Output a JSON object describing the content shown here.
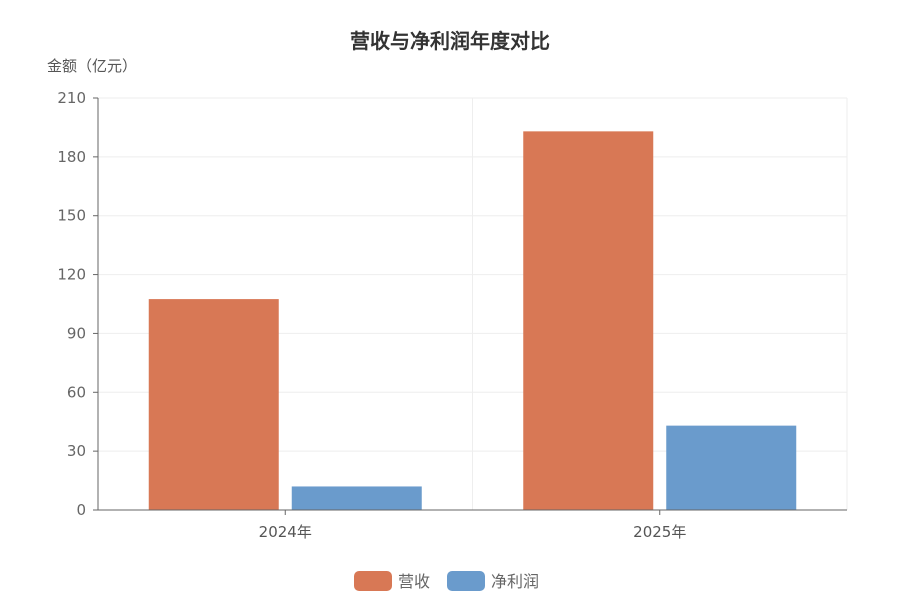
{
  "chart_data": {
    "type": "bar",
    "title": "营收与净利润年度对比",
    "ylabel": "金额（亿元）",
    "xlabel": "",
    "categories": [
      "2024年",
      "2025年"
    ],
    "ylim": [
      0,
      210
    ],
    "yticks": [
      0,
      30,
      60,
      90,
      120,
      150,
      180,
      210
    ],
    "grid": true,
    "legend_position": "bottom-center",
    "series": [
      {
        "name": "营收",
        "color": "#d87855",
        "values": [
          107.5,
          193
        ]
      },
      {
        "name": "净利润",
        "color": "#6a9bcc",
        "values": [
          12,
          43
        ]
      }
    ]
  }
}
